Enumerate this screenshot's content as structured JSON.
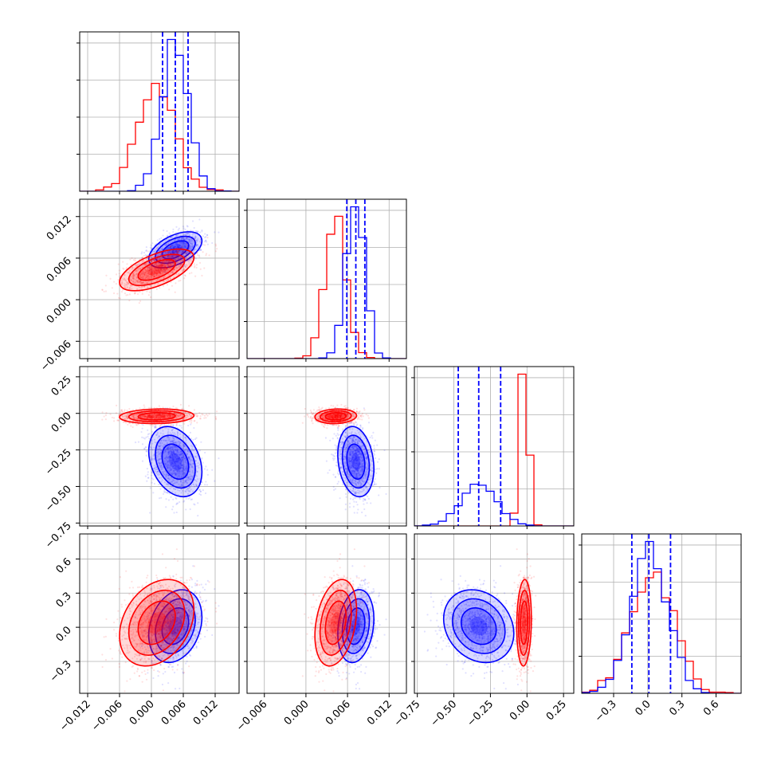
{
  "chart_data": {
    "type": "corner",
    "n_params": 4,
    "colors": {
      "red": "#ff0000",
      "blue": "#0000ff"
    },
    "grid": true,
    "axes": [
      {
        "name": "",
        "range": [
          -0.0135,
          0.0165
        ],
        "ticks": [
          -0.012,
          -0.006,
          0.0,
          0.006,
          0.012
        ],
        "tick_labels": [
          "−0.012",
          "−0.006",
          "0.000",
          "0.006",
          "0.012"
        ]
      },
      {
        "name": "",
        "range": [
          -0.0085,
          0.0145
        ],
        "ticks": [
          -0.006,
          0.0,
          0.006,
          0.012
        ],
        "tick_labels": [
          "−0.006",
          "0.000",
          "0.006",
          "0.012"
        ]
      },
      {
        "name": "",
        "range": [
          -0.77,
          0.32
        ],
        "ticks": [
          -0.75,
          -0.5,
          -0.25,
          0.0,
          0.25
        ],
        "tick_labels": [
          "−0.75",
          "−0.50",
          "−0.25",
          "0.00",
          "0.25"
        ]
      },
      {
        "name": "",
        "range": [
          -0.58,
          0.82
        ],
        "ticks": [
          -0.3,
          0.0,
          0.3,
          0.6
        ],
        "tick_labels": [
          "−0.3",
          "0.0",
          "0.3",
          "0.6"
        ]
      }
    ],
    "series": [
      {
        "name": "",
        "color": "#0000ff",
        "mean": [
          0.0045,
          0.0072,
          -0.33,
          0.01
        ],
        "std": [
          0.0025,
          0.0013,
          0.12,
          0.16
        ],
        "corr": [
          [
            1,
            0.5,
            -0.3,
            0.25
          ],
          [
            0.5,
            1,
            -0.2,
            0.2
          ],
          [
            -0.3,
            -0.2,
            1,
            -0.2
          ],
          [
            0.25,
            0.2,
            -0.2,
            1
          ]
        ],
        "quantiles": [
          [
            0.0021,
            0.0045,
            0.0069
          ],
          [
            0.0059,
            0.0072,
            0.0085
          ],
          [
            -0.47,
            -0.33,
            -0.18
          ],
          [
            -0.14,
            0.01,
            0.2
          ]
        ]
      },
      {
        "name": "",
        "color": "#ff0000",
        "mean": [
          0.001,
          0.0043,
          -0.02,
          0.04
        ],
        "std": [
          0.0035,
          0.0015,
          0.025,
          0.19
        ],
        "corr": [
          [
            1,
            0.6,
            0.1,
            0.3
          ],
          [
            0.6,
            1,
            0.1,
            0.3
          ],
          [
            0.1,
            0.1,
            1,
            0.1
          ],
          [
            0.3,
            0.3,
            0.1,
            1
          ]
        ],
        "quantiles": null
      }
    ]
  }
}
